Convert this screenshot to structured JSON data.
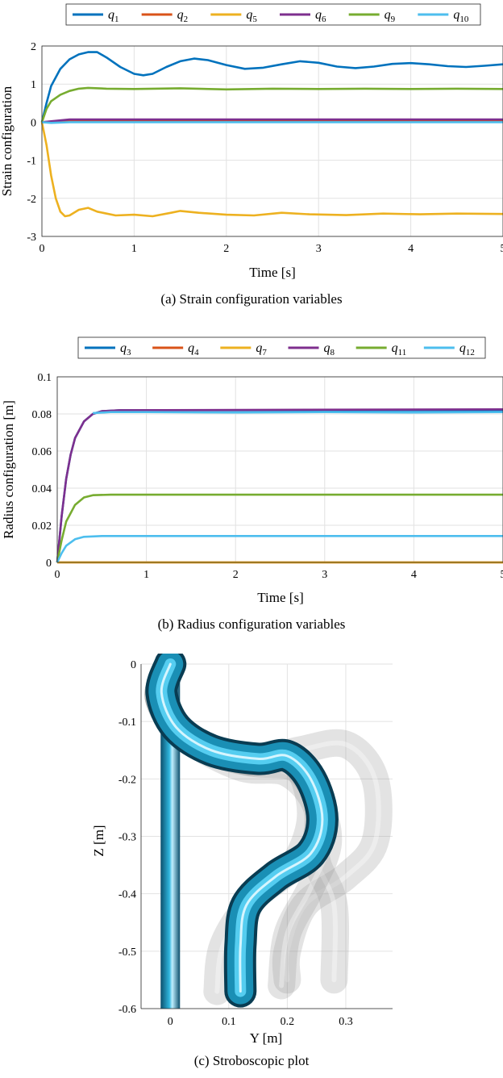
{
  "figures": [
    {
      "caption": "(a) Strain configuration variables",
      "chart_data": {
        "type": "line",
        "xlabel": "Time [s]",
        "ylabel": "Strain configuration",
        "xlim": [
          0,
          5
        ],
        "ylim": [
          -3,
          2
        ],
        "xticks": [
          "0",
          "1",
          "2",
          "3",
          "4",
          "5"
        ],
        "yticks": [
          "-3",
          "-2",
          "-1",
          "0",
          "1",
          "2"
        ],
        "grid": true,
        "legend": "top, horizontal",
        "series": [
          {
            "name": "q1",
            "sub": "1",
            "color": "#0072BD",
            "points": [
              [
                0,
                0
              ],
              [
                0.05,
                0.5
              ],
              [
                0.1,
                0.95
              ],
              [
                0.2,
                1.4
              ],
              [
                0.3,
                1.65
              ],
              [
                0.4,
                1.78
              ],
              [
                0.5,
                1.84
              ],
              [
                0.6,
                1.84
              ],
              [
                0.7,
                1.7
              ],
              [
                0.85,
                1.45
              ],
              [
                1,
                1.27
              ],
              [
                1.1,
                1.23
              ],
              [
                1.2,
                1.27
              ],
              [
                1.35,
                1.45
              ],
              [
                1.5,
                1.6
              ],
              [
                1.65,
                1.67
              ],
              [
                1.8,
                1.63
              ],
              [
                2,
                1.5
              ],
              [
                2.2,
                1.4
              ],
              [
                2.4,
                1.43
              ],
              [
                2.6,
                1.52
              ],
              [
                2.8,
                1.6
              ],
              [
                3,
                1.56
              ],
              [
                3.2,
                1.46
              ],
              [
                3.4,
                1.42
              ],
              [
                3.6,
                1.46
              ],
              [
                3.8,
                1.53
              ],
              [
                4,
                1.55
              ],
              [
                4.2,
                1.52
              ],
              [
                4.4,
                1.47
              ],
              [
                4.6,
                1.45
              ],
              [
                4.8,
                1.48
              ],
              [
                5,
                1.52
              ]
            ]
          },
          {
            "name": "q2",
            "sub": "2",
            "color": "#D95319",
            "points": [
              [
                0,
                0
              ],
              [
                0.3,
                0.04
              ],
              [
                5,
                0.04
              ]
            ]
          },
          {
            "name": "q5",
            "sub": "5",
            "color": "#EDB120",
            "points": [
              [
                0,
                0
              ],
              [
                0.05,
                -0.6
              ],
              [
                0.1,
                -1.4
              ],
              [
                0.15,
                -2.0
              ],
              [
                0.2,
                -2.35
              ],
              [
                0.25,
                -2.47
              ],
              [
                0.3,
                -2.45
              ],
              [
                0.4,
                -2.3
              ],
              [
                0.5,
                -2.25
              ],
              [
                0.6,
                -2.35
              ],
              [
                0.8,
                -2.45
              ],
              [
                1,
                -2.43
              ],
              [
                1.2,
                -2.47
              ],
              [
                1.4,
                -2.38
              ],
              [
                1.5,
                -2.33
              ],
              [
                1.7,
                -2.38
              ],
              [
                2,
                -2.43
              ],
              [
                2.3,
                -2.45
              ],
              [
                2.6,
                -2.38
              ],
              [
                2.9,
                -2.42
              ],
              [
                3.3,
                -2.44
              ],
              [
                3.7,
                -2.4
              ],
              [
                4.1,
                -2.42
              ],
              [
                4.5,
                -2.4
              ],
              [
                5,
                -2.41
              ]
            ]
          },
          {
            "name": "q6",
            "sub": "6",
            "color": "#7E2F8E",
            "points": [
              [
                0,
                0
              ],
              [
                0.3,
                0.07
              ],
              [
                5,
                0.07
              ]
            ]
          },
          {
            "name": "q9",
            "sub": "9",
            "color": "#77AC30",
            "points": [
              [
                0,
                0
              ],
              [
                0.05,
                0.35
              ],
              [
                0.1,
                0.55
              ],
              [
                0.2,
                0.72
              ],
              [
                0.3,
                0.82
              ],
              [
                0.4,
                0.88
              ],
              [
                0.5,
                0.9
              ],
              [
                0.7,
                0.88
              ],
              [
                1,
                0.87
              ],
              [
                1.5,
                0.89
              ],
              [
                2,
                0.86
              ],
              [
                2.5,
                0.88
              ],
              [
                3,
                0.87
              ],
              [
                3.5,
                0.88
              ],
              [
                4,
                0.87
              ],
              [
                4.5,
                0.88
              ],
              [
                5,
                0.87
              ]
            ]
          },
          {
            "name": "q10",
            "sub": "10",
            "color": "#4DBEEE",
            "points": [
              [
                0,
                0
              ],
              [
                0.1,
                -0.02
              ],
              [
                0.3,
                0.0
              ],
              [
                5,
                0.0
              ]
            ]
          }
        ]
      }
    },
    {
      "caption": "(b) Radius configuration variables",
      "chart_data": {
        "type": "line",
        "xlabel": "Time [s]",
        "ylabel": "Radius configuration [m]",
        "xlim": [
          0,
          5
        ],
        "ylim": [
          0,
          0.1
        ],
        "xticks": [
          "0",
          "1",
          "2",
          "3",
          "4",
          "5"
        ],
        "yticks": [
          "0",
          "0.02",
          "0.04",
          "0.06",
          "0.08",
          "0.1"
        ],
        "grid": true,
        "legend": "top, horizontal",
        "series": [
          {
            "name": "q3",
            "sub": "3",
            "color": "#0072BD",
            "points": [
              [
                0,
                0
              ],
              [
                0.05,
                0.025
              ],
              [
                0.1,
                0.045
              ],
              [
                0.15,
                0.058
              ],
              [
                0.2,
                0.067
              ],
              [
                0.3,
                0.076
              ],
              [
                0.4,
                0.08
              ],
              [
                0.5,
                0.0815
              ],
              [
                0.7,
                0.082
              ],
              [
                5,
                0.082
              ]
            ]
          },
          {
            "name": "q4",
            "sub": "4",
            "color": "#D95319",
            "points": [
              [
                0,
                0
              ],
              [
                5,
                0
              ]
            ]
          },
          {
            "name": "q7",
            "sub": "7",
            "color": "#EDB120",
            "points": [
              [
                0,
                0
              ],
              [
                5,
                0
              ]
            ]
          },
          {
            "name": "q8",
            "sub": "8",
            "color": "#7E2F8E",
            "points": [
              [
                0,
                0
              ],
              [
                0.05,
                0.025
              ],
              [
                0.1,
                0.045
              ],
              [
                0.15,
                0.058
              ],
              [
                0.2,
                0.067
              ],
              [
                0.3,
                0.076
              ],
              [
                0.4,
                0.08
              ],
              [
                0.5,
                0.0815
              ],
              [
                0.7,
                0.082
              ],
              [
                5,
                0.0825
              ]
            ]
          },
          {
            "name": "q11",
            "sub": "11",
            "color": "#77AC30",
            "points": [
              [
                0,
                0
              ],
              [
                0.05,
                0.012
              ],
              [
                0.1,
                0.022
              ],
              [
                0.2,
                0.031
              ],
              [
                0.3,
                0.035
              ],
              [
                0.4,
                0.0362
              ],
              [
                0.6,
                0.0365
              ],
              [
                5,
                0.0365
              ]
            ]
          },
          {
            "name": "q12",
            "sub": "12",
            "color": "#4DBEEE",
            "points": [
              [
                0,
                0
              ],
              [
                0.05,
                0.005
              ],
              [
                0.1,
                0.009
              ],
              [
                0.2,
                0.0125
              ],
              [
                0.3,
                0.0138
              ],
              [
                0.5,
                0.0142
              ],
              [
                5,
                0.0142
              ]
            ]
          },
          {
            "name": "",
            "sub": "",
            "color": "#4DBEEE",
            "points": [
              [
                0.4,
                0.0805
              ],
              [
                0.6,
                0.081
              ],
              [
                1,
                0.081
              ],
              [
                2,
                0.0808
              ],
              [
                3,
                0.081
              ],
              [
                4,
                0.0808
              ],
              [
                5,
                0.081
              ]
            ]
          }
        ]
      }
    },
    {
      "caption": "(c) Stroboscopic plot",
      "chart_data": {
        "type": "scatter",
        "xlabel": "Y [m]",
        "ylabel": "Z [m]",
        "xlim": [
          -0.05,
          0.38
        ],
        "ylim": [
          -0.6,
          0
        ],
        "xticks": [
          "0",
          "0.1",
          "0.2",
          "0.3"
        ],
        "xtick_values": [
          0,
          0.1,
          0.2,
          0.3
        ],
        "yticks": [
          "0",
          "-0.1",
          "-0.2",
          "-0.3",
          "-0.4",
          "-0.5",
          "-0.6"
        ],
        "grid": true,
        "tube_color": "#1a8fb5",
        "ghost_color": "#9a9a9a",
        "frames": [
          {
            "kind": "straight",
            "points": [
              [
                0,
                0
              ],
              [
                0,
                -0.6
              ]
            ]
          },
          {
            "kind": "ghost",
            "points": [
              [
                0,
                0
              ],
              [
                -0.02,
                -0.06
              ],
              [
                0.03,
                -0.13
              ],
              [
                0.13,
                -0.17
              ],
              [
                0.22,
                -0.15
              ],
              [
                0.3,
                -0.14
              ],
              [
                0.35,
                -0.2
              ],
              [
                0.35,
                -0.31
              ],
              [
                0.3,
                -0.37
              ],
              [
                0.23,
                -0.42
              ],
              [
                0.2,
                -0.5
              ],
              [
                0.2,
                -0.55
              ]
            ]
          },
          {
            "kind": "ghost",
            "points": [
              [
                0,
                0
              ],
              [
                -0.02,
                -0.06
              ],
              [
                0.03,
                -0.13
              ],
              [
                0.12,
                -0.18
              ],
              [
                0.2,
                -0.19
              ],
              [
                0.25,
                -0.25
              ],
              [
                0.25,
                -0.34
              ],
              [
                0.28,
                -0.42
              ],
              [
                0.28,
                -0.55
              ]
            ]
          },
          {
            "kind": "ghost",
            "points": [
              [
                0,
                0
              ],
              [
                -0.02,
                -0.06
              ],
              [
                0.03,
                -0.13
              ],
              [
                0.13,
                -0.17
              ],
              [
                0.21,
                -0.17
              ],
              [
                0.24,
                -0.26
              ],
              [
                0.21,
                -0.35
              ],
              [
                0.14,
                -0.41
              ],
              [
                0.09,
                -0.49
              ],
              [
                0.08,
                -0.57
              ]
            ]
          },
          {
            "kind": "ghost",
            "points": [
              [
                0,
                0
              ],
              [
                -0.02,
                -0.06
              ],
              [
                0.03,
                -0.13
              ],
              [
                0.13,
                -0.17
              ],
              [
                0.21,
                -0.18
              ],
              [
                0.25,
                -0.23
              ],
              [
                0.27,
                -0.31
              ],
              [
                0.24,
                -0.39
              ],
              [
                0.2,
                -0.47
              ],
              [
                0.19,
                -0.56
              ]
            ]
          },
          {
            "kind": "tube",
            "points": [
              [
                0,
                0
              ],
              [
                -0.015,
                -0.05
              ],
              [
                0.01,
                -0.11
              ],
              [
                0.07,
                -0.15
              ],
              [
                0.15,
                -0.165
              ],
              [
                0.2,
                -0.16
              ],
              [
                0.24,
                -0.2
              ],
              [
                0.26,
                -0.27
              ],
              [
                0.24,
                -0.33
              ],
              [
                0.18,
                -0.37
              ],
              [
                0.13,
                -0.42
              ],
              [
                0.12,
                -0.49
              ],
              [
                0.12,
                -0.57
              ]
            ]
          }
        ]
      }
    }
  ]
}
